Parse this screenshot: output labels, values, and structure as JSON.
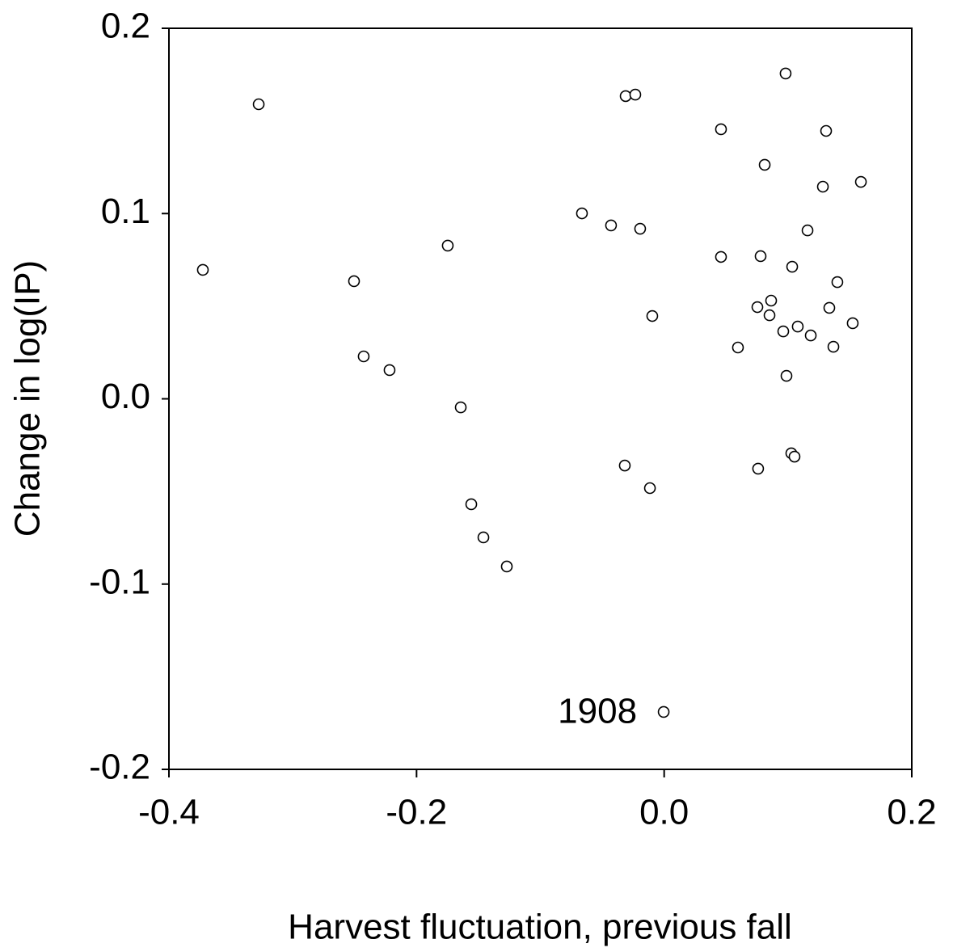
{
  "chart_data": {
    "type": "scatter",
    "x_label": "Harvest fluctuation, previous fall",
    "y_label": "Change in log(IP)",
    "x": [
      -0.3726,
      -0.3275,
      -0.2505,
      -0.2427,
      -0.2218,
      -0.1748,
      -0.1643,
      -0.1558,
      -0.146,
      -0.1271,
      -0.0664,
      -0.0429,
      -0.0311,
      -0.0233,
      -0.0194,
      -0.0096,
      -0.0318,
      -0.0115,
      -0.0004,
      0.0459,
      0.0459,
      0.0596,
      0.0753,
      0.0779,
      0.0812,
      0.0851,
      0.0864,
      0.0962,
      0.0981,
      0.0988,
      0.1034,
      0.1027,
      0.1053,
      0.0759,
      0.1079,
      0.1158,
      0.1184,
      0.1282,
      0.1308,
      0.1334,
      0.1367,
      0.1399,
      0.1523,
      0.1589
    ],
    "values": [
      0.0696,
      0.159,
      0.0635,
      0.0229,
      0.0155,
      0.0827,
      -0.0046,
      -0.0569,
      -0.0748,
      -0.0905,
      0.1001,
      0.0936,
      0.1634,
      0.1642,
      0.0918,
      0.0447,
      -0.036,
      -0.0482,
      -0.169,
      0.1455,
      0.0766,
      0.0277,
      0.0495,
      0.077,
      0.1263,
      0.0451,
      0.053,
      0.0364,
      0.1756,
      0.0124,
      0.0713,
      -0.0294,
      -0.0312,
      -0.0377,
      0.039,
      0.0909,
      0.0342,
      0.1145,
      0.1446,
      0.0491,
      0.0281,
      0.063,
      0.0408,
      0.1171
    ],
    "color": "#000000",
    "annotations": [
      {
        "text": "1908",
        "x": -0.0004,
        "y": -0.169
      }
    ],
    "xlim": [
      -0.4,
      0.2
    ],
    "xticks": [
      -0.4,
      -0.2,
      {
        "value": 0,
        "label": "0.0"
      },
      0.2
    ],
    "ylim": [
      -0.2,
      0.2
    ],
    "yticks": [
      -0.2,
      -0.1,
      {
        "value": 0,
        "label": "0.0"
      },
      0.1,
      0.2
    ],
    "grid": false
  }
}
